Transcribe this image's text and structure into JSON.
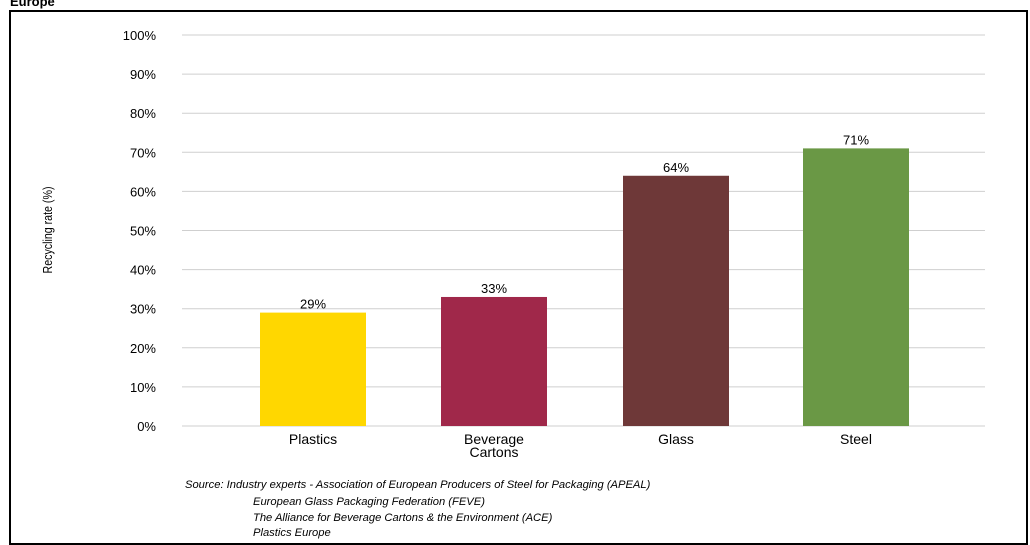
{
  "chart_data": {
    "type": "bar",
    "title": "Europe",
    "ylabel": "Recycling rate (%)",
    "xlabel": "",
    "categories": [
      "Plastics",
      "Beverage Cartons",
      "Glass",
      "Steel"
    ],
    "category_lines": [
      [
        "Plastics"
      ],
      [
        "Beverage",
        "Cartons"
      ],
      [
        "Glass"
      ],
      [
        "Steel"
      ]
    ],
    "values": [
      29,
      33,
      64,
      71
    ],
    "value_labels": [
      "29%",
      "33%",
      "64%",
      "71%"
    ],
    "bar_colors": [
      "#FFD700",
      "#A0284A",
      "#6E3838",
      "#6A9845"
    ],
    "ylim": [
      0,
      100
    ],
    "yticks": [
      0,
      10,
      20,
      30,
      40,
      50,
      60,
      70,
      80,
      90,
      100
    ],
    "ytick_labels": [
      "0%",
      "10%",
      "20%",
      "30%",
      "40%",
      "50%",
      "60%",
      "70%",
      "80%",
      "90%",
      "100%"
    ],
    "grid": true,
    "legend": "none"
  },
  "source": {
    "line1": "Source: Industry experts - Association of European Producers of Steel for Packaging (APEAL)",
    "line2": "European Glass Packaging Federation (FEVE)",
    "line3": "The Alliance for Beverage Cartons & the Environment (ACE)",
    "line4": "Plastics Europe"
  }
}
